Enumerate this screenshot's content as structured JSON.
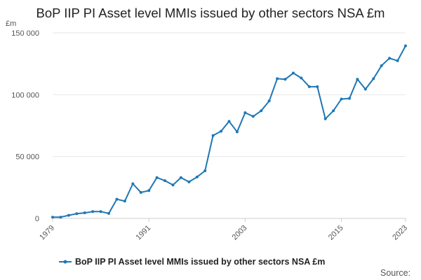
{
  "chart_data": {
    "type": "line",
    "title": "BoP IIP PI Asset level MMIs issued by other sectors NSA £m",
    "unit": "£m",
    "xlabel": "",
    "ylabel": "",
    "xlim": [
      1979,
      2023
    ],
    "ylim": [
      0,
      150000
    ],
    "y_ticks": [
      0,
      50000,
      100000,
      150000
    ],
    "y_tick_labels": [
      "0",
      "50 000",
      "100 000",
      "150 000"
    ],
    "x_ticks": [
      1979,
      1991,
      2003,
      2015,
      2023
    ],
    "x_tick_labels": [
      "1979",
      "1991",
      "2003",
      "2015",
      "2023"
    ],
    "grid": "horizontal",
    "legend_position": "bottom",
    "source_label": "Source:",
    "series": [
      {
        "name": "BoP IIP PI Asset level MMIs issued by other sectors NSA £m",
        "color": "#1f77b4",
        "x": [
          1979,
          1980,
          1981,
          1982,
          1983,
          1984,
          1985,
          1986,
          1987,
          1988,
          1989,
          1990,
          1991,
          1992,
          1993,
          1994,
          1995,
          1996,
          1997,
          1998,
          1999,
          2000,
          2001,
          2002,
          2003,
          2004,
          2005,
          2006,
          2007,
          2008,
          2009,
          2010,
          2011,
          2012,
          2013,
          2014,
          2015,
          2016,
          2017,
          2018,
          2019,
          2020,
          2021,
          2022,
          2023
        ],
        "values": [
          1000,
          1000,
          2500,
          3800,
          4500,
          5500,
          5500,
          4000,
          15500,
          14000,
          28000,
          21000,
          22500,
          33000,
          30500,
          27000,
          33000,
          29500,
          33500,
          38500,
          67000,
          70500,
          78500,
          70000,
          85500,
          82500,
          87000,
          95000,
          113000,
          112500,
          117500,
          113500,
          106500,
          106500,
          80500,
          87000,
          96500,
          97000,
          112500,
          104500,
          113000,
          123500,
          129500,
          127500,
          139500
        ]
      }
    ]
  }
}
